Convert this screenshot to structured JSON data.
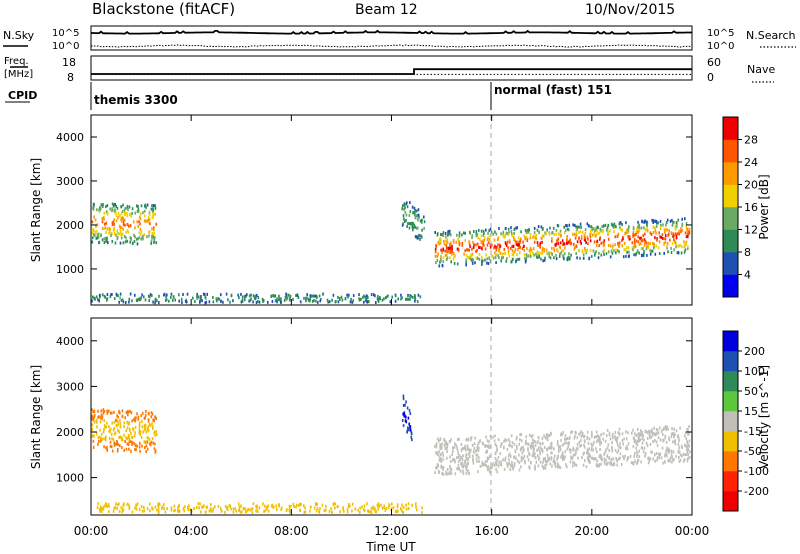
{
  "header": {
    "title": "Blackstone (fitACF)",
    "beam": "Beam 12",
    "date": "10/Nov/2015"
  },
  "status_panels": {
    "nsky_label": "N.Sky",
    "nsearch_label": "N.Search",
    "noise_ticks": [
      "10^5",
      "10^0"
    ],
    "freq_label_line1": "Freq.",
    "freq_label_line2": "[MHz]",
    "freq_ticks": [
      "18",
      "8"
    ],
    "freq_range": [
      8,
      18
    ],
    "nave_label": "Nave",
    "nave_ticks": [
      "60",
      "0"
    ],
    "nave_range": [
      0,
      60
    ],
    "cpid_label": "CPID",
    "cpid_segments": [
      {
        "name": "themis 3300",
        "start_hour": 0
      },
      {
        "name": "normal (fast) 151",
        "start_hour": 16
      }
    ],
    "freq_steps": [
      {
        "hour": 0,
        "mhz": 10.5
      },
      {
        "hour": 12.9,
        "mhz": 10.5
      },
      {
        "hour": 12.9,
        "mhz": 12.5
      },
      {
        "hour": 24,
        "mhz": 12.5
      }
    ],
    "nave_steps": [
      {
        "hour": 0,
        "value": 14
      },
      {
        "hour": 24,
        "value": 14
      }
    ]
  },
  "chart_data": [
    {
      "type": "heatmap",
      "panel": "power",
      "ylabel": "Slant Range [km]",
      "xlabel": "",
      "x_range_hours": [
        0,
        24
      ],
      "ylim": [
        180,
        4500
      ],
      "yticks": [
        1000,
        2000,
        3000,
        4000
      ],
      "colorbar_label": "Power [dB]",
      "colorbar_ticks": [
        "4",
        "8",
        "12",
        "16",
        "20",
        "24",
        "28"
      ],
      "color_levels": [
        "#0000ee",
        "#1e50b4",
        "#2e8b57",
        "#6aaa64",
        "#f0d000",
        "#ff9900",
        "#ff5500",
        "#ee0000"
      ],
      "scatter_bands": [
        {
          "h0": 0.0,
          "h1": 2.6,
          "range_center": 2050,
          "range_center_end": 2000,
          "thickness": 900,
          "value_core": 26,
          "value_edge": 8
        },
        {
          "h0": 12.4,
          "h1": 13.3,
          "range_center": 2300,
          "range_center_end": 1900,
          "thickness": 700,
          "value_core": 14,
          "value_edge": 6
        },
        {
          "h0": 13.7,
          "h1": 23.9,
          "range_center": 1450,
          "range_center_end": 1750,
          "thickness": 800,
          "value_core": 30,
          "value_edge": 6
        },
        {
          "h0": 0.0,
          "h1": 13.2,
          "range_center": 330,
          "range_center_end": 330,
          "thickness": 200,
          "value_core": 12,
          "value_edge": 6
        }
      ]
    },
    {
      "type": "heatmap",
      "panel": "velocity",
      "ylabel": "Slant Range [km]",
      "xlabel": "Time UT",
      "x_ticks": [
        "00:00",
        "04:00",
        "08:00",
        "12:00",
        "16:00",
        "20:00",
        "00:00"
      ],
      "x_range_hours": [
        0,
        24
      ],
      "ylim": [
        180,
        4500
      ],
      "yticks": [
        1000,
        2000,
        3000,
        4000
      ],
      "colorbar_label": "Velocity [m s^-1]",
      "colorbar_ticks": [
        "200",
        "100",
        "50",
        "15",
        "-15",
        "-50",
        "-100",
        "-200"
      ],
      "color_levels": [
        "#0000dd",
        "#1e50b4",
        "#2e8b57",
        "#5cc83c",
        "#c0c0b8",
        "#f0c000",
        "#ff7700",
        "#ff2200",
        "#ee0000"
      ],
      "scatter_bands": [
        {
          "h0": 0.0,
          "h1": 2.6,
          "range_center": 2050,
          "range_center_end": 2000,
          "thickness": 900,
          "value_core": -20,
          "value_edge": -80
        },
        {
          "h0": 12.4,
          "h1": 12.8,
          "range_center": 2500,
          "range_center_end": 2100,
          "thickness": 700,
          "value_core": 230,
          "value_edge": 150
        },
        {
          "h0": 13.7,
          "h1": 23.9,
          "range_center": 1450,
          "range_center_end": 1750,
          "thickness": 800,
          "value_core": 0,
          "value_edge": 5
        },
        {
          "h0": 0.0,
          "h1": 13.2,
          "range_center": 330,
          "range_center_end": 330,
          "thickness": 200,
          "value_core": -40,
          "value_edge": -30
        }
      ]
    }
  ]
}
